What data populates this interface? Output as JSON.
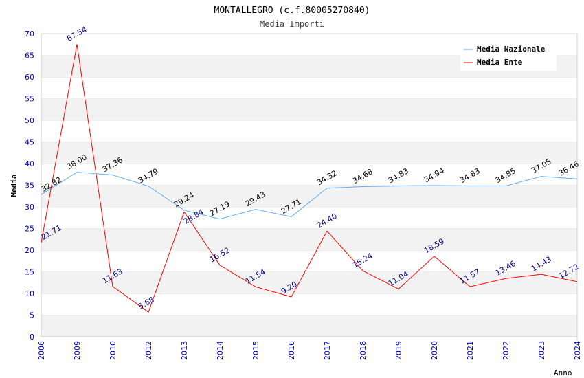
{
  "chart_data": {
    "type": "line",
    "title": "MONTALLEGRO (c.f.80005270840)",
    "subtitle": "Media Importi",
    "xlabel": "Anno",
    "ylabel": "Media",
    "ylim": [
      0,
      70
    ],
    "yticks": [
      0,
      5,
      10,
      15,
      20,
      25,
      30,
      35,
      40,
      45,
      50,
      55,
      60,
      65,
      70
    ],
    "categories": [
      "2006",
      "2009",
      "2010",
      "2012",
      "2013",
      "2014",
      "2015",
      "2016",
      "2017",
      "2018",
      "2019",
      "2020",
      "2021",
      "2022",
      "2023",
      "2024"
    ],
    "series": [
      {
        "name": "Media Nazionale",
        "color": "#66aaee",
        "label_color": "#000000",
        "values": [
          32.82,
          38.0,
          37.36,
          34.79,
          29.24,
          27.19,
          29.43,
          27.71,
          34.32,
          34.68,
          34.83,
          34.94,
          34.83,
          34.85,
          37.05,
          36.46
        ]
      },
      {
        "name": "Media Ente",
        "color": "#ff0000",
        "label_color": "#000080",
        "values": [
          21.71,
          67.54,
          11.63,
          5.68,
          28.84,
          16.52,
          11.54,
          9.2,
          24.4,
          15.24,
          11.04,
          18.59,
          11.57,
          13.46,
          14.43,
          12.72
        ]
      }
    ],
    "legend": "top-right",
    "grid": true
  }
}
